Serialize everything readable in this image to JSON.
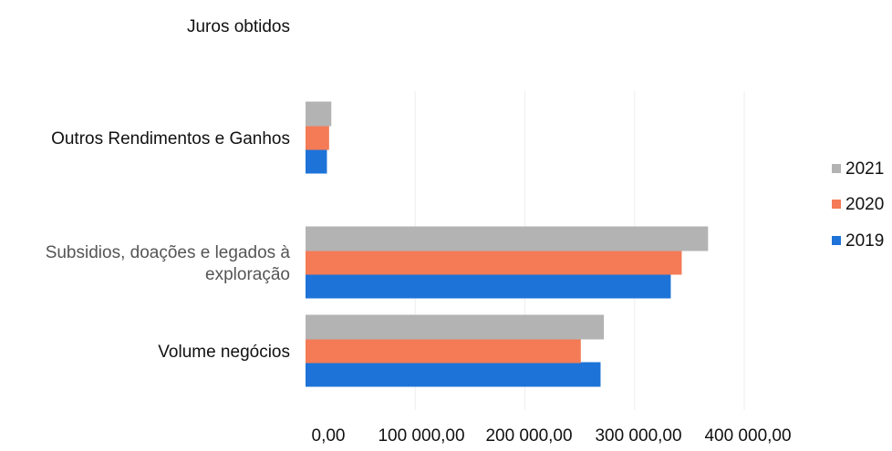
{
  "chart_data": {
    "type": "bar",
    "orientation": "horizontal",
    "categories": [
      "Volume negócios",
      [
        "Subsidios, doações e legados à",
        "exploração"
      ],
      "Outros Rendimentos e Ganhos",
      "Juros obtidos"
    ],
    "series": [
      {
        "name": "2019",
        "color": "#1e73d8",
        "values": [
          269000,
          333000,
          19500,
          0
        ]
      },
      {
        "name": "2020",
        "color": "#f47b56",
        "values": [
          251000,
          343000,
          21500,
          0
        ]
      },
      {
        "name": "2021",
        "color": "#b3b3b3",
        "values": [
          272000,
          367000,
          23500,
          0
        ]
      }
    ],
    "xlim": [
      0,
      400000
    ],
    "x_ticks": [
      0,
      100000,
      200000,
      300000,
      400000
    ],
    "x_tick_labels": [
      "0,00",
      "100 000,00",
      "200 000,00",
      "300 000,00",
      "400 000,00"
    ],
    "legend": {
      "position": "right",
      "order": [
        "2021",
        "2020",
        "2019"
      ]
    },
    "grid": true
  }
}
